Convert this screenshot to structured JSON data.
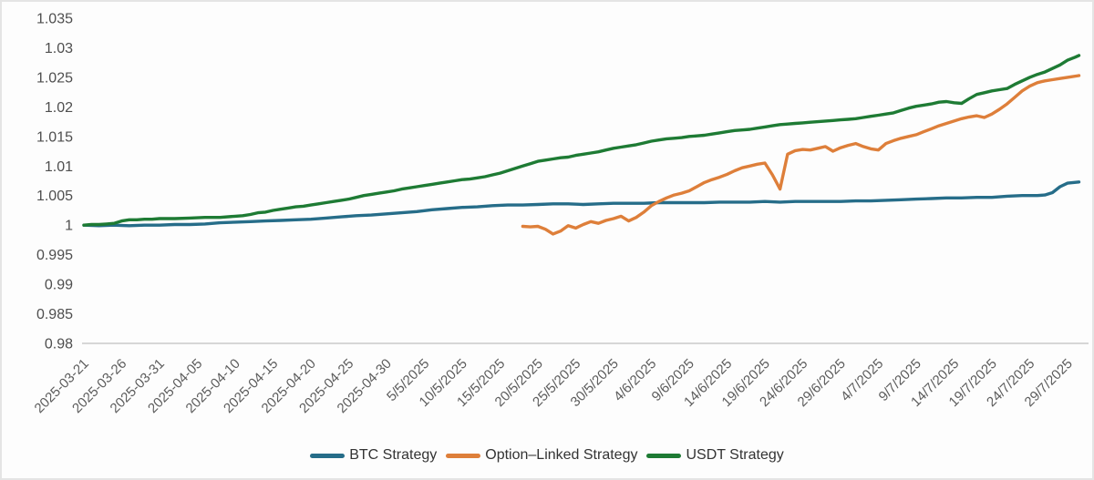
{
  "colors": {
    "background": "#fdfdfd",
    "frame_border": "#e4e4e4",
    "axis_line": "#d7d7d7",
    "y_tick_label": "#4e4e4e",
    "x_tick_label": "#5c5c5c",
    "legend_label": "#333333"
  },
  "chart_data": {
    "type": "line",
    "title": "",
    "xlabel": "",
    "ylabel": "",
    "grid": false,
    "legend_position": "bottom-center",
    "ylim": [
      0.98,
      1.035
    ],
    "y_tick_labels": [
      "1.035",
      "1.03",
      "1.025",
      "1.02",
      "1.015",
      "1.01",
      "1.005",
      "1",
      "0.995",
      "0.99",
      "0.985",
      "0.98"
    ],
    "y_tick_values": [
      1.035,
      1.03,
      1.025,
      1.02,
      1.015,
      1.01,
      1.005,
      1,
      0.995,
      0.99,
      0.985,
      0.98
    ],
    "x_tick_labels": [
      "2025-03-21",
      "2025-03-26",
      "2025-03-31",
      "2025-04-05",
      "2025-04-10",
      "2025-04-15",
      "2025-04-20",
      "2025-04-25",
      "2025-04-30",
      "5/5/2025",
      "10/5/2025",
      "15/5/2025",
      "20/5/2025",
      "25/5/2025",
      "30/5/2025",
      "4/6/2025",
      "9/6/2025",
      "14/6/2025",
      "19/6/2025",
      "24/6/2025",
      "29/6/2025",
      "4/7/2025",
      "9/7/2025",
      "14/7/2025",
      "19/7/2025",
      "24/7/2025",
      "29/7/2025"
    ],
    "x_tick_days": [
      0,
      5,
      10,
      15,
      20,
      25,
      30,
      35,
      40,
      45,
      50,
      55,
      60,
      65,
      70,
      75,
      80,
      85,
      90,
      95,
      100,
      105,
      110,
      115,
      120,
      125,
      130
    ],
    "x_day_range": [
      0,
      131.5
    ],
    "series": [
      {
        "name": "BTC Strategy",
        "color": "#266d89",
        "points": [
          [
            0,
            1.0
          ],
          [
            2,
            0.9999
          ],
          [
            4,
            1.0
          ],
          [
            6,
            0.9999
          ],
          [
            8,
            1.0
          ],
          [
            10,
            1.0
          ],
          [
            12,
            1.0001
          ],
          [
            14,
            1.0001
          ],
          [
            16,
            1.0002
          ],
          [
            18,
            1.0004
          ],
          [
            20,
            1.0005
          ],
          [
            22,
            1.0006
          ],
          [
            24,
            1.0007
          ],
          [
            26,
            1.0008
          ],
          [
            28,
            1.0009
          ],
          [
            30,
            1.001
          ],
          [
            32,
            1.0012
          ],
          [
            34,
            1.0014
          ],
          [
            36,
            1.0016
          ],
          [
            38,
            1.0017
          ],
          [
            40,
            1.0019
          ],
          [
            42,
            1.0021
          ],
          [
            44,
            1.0023
          ],
          [
            46,
            1.0026
          ],
          [
            48,
            1.0028
          ],
          [
            50,
            1.003
          ],
          [
            52,
            1.0031
          ],
          [
            54,
            1.0033
          ],
          [
            56,
            1.0034
          ],
          [
            58,
            1.0034
          ],
          [
            60,
            1.0035
          ],
          [
            62,
            1.0036
          ],
          [
            64,
            1.0036
          ],
          [
            66,
            1.0035
          ],
          [
            68,
            1.0036
          ],
          [
            70,
            1.0037
          ],
          [
            72,
            1.0037
          ],
          [
            74,
            1.0037
          ],
          [
            76,
            1.0038
          ],
          [
            78,
            1.0038
          ],
          [
            80,
            1.0038
          ],
          [
            82,
            1.0038
          ],
          [
            84,
            1.0039
          ],
          [
            86,
            1.0039
          ],
          [
            88,
            1.0039
          ],
          [
            90,
            1.004
          ],
          [
            92,
            1.0039
          ],
          [
            94,
            1.004
          ],
          [
            96,
            1.004
          ],
          [
            98,
            1.004
          ],
          [
            100,
            1.004
          ],
          [
            102,
            1.0041
          ],
          [
            104,
            1.0041
          ],
          [
            106,
            1.0042
          ],
          [
            108,
            1.0043
          ],
          [
            110,
            1.0044
          ],
          [
            112,
            1.0045
          ],
          [
            114,
            1.0046
          ],
          [
            116,
            1.0046
          ],
          [
            118,
            1.0047
          ],
          [
            120,
            1.0047
          ],
          [
            122,
            1.0049
          ],
          [
            124,
            1.005
          ],
          [
            126,
            1.005
          ],
          [
            127,
            1.0051
          ],
          [
            128,
            1.0055
          ],
          [
            129,
            1.0065
          ],
          [
            130,
            1.0071
          ],
          [
            131.5,
            1.0073
          ]
        ]
      },
      {
        "name": "Option–Linked Strategy",
        "color": "#de7f3a",
        "points": [
          [
            58,
            0.9998
          ],
          [
            59,
            0.9997
          ],
          [
            60,
            0.9998
          ],
          [
            61,
            0.9993
          ],
          [
            62,
            0.9985
          ],
          [
            63,
            0.999
          ],
          [
            64,
            0.9999
          ],
          [
            65,
            0.9995
          ],
          [
            66,
            1.0001
          ],
          [
            67,
            1.0006
          ],
          [
            68,
            1.0003
          ],
          [
            69,
            1.0008
          ],
          [
            70,
            1.0011
          ],
          [
            71,
            1.0015
          ],
          [
            72,
            1.0007
          ],
          [
            73,
            1.0013
          ],
          [
            74,
            1.0022
          ],
          [
            75,
            1.0033
          ],
          [
            76,
            1.004
          ],
          [
            77,
            1.0046
          ],
          [
            78,
            1.0051
          ],
          [
            79,
            1.0054
          ],
          [
            80,
            1.0058
          ],
          [
            81,
            1.0065
          ],
          [
            82,
            1.0072
          ],
          [
            83,
            1.0077
          ],
          [
            84,
            1.0081
          ],
          [
            85,
            1.0086
          ],
          [
            86,
            1.0092
          ],
          [
            87,
            1.0097
          ],
          [
            88,
            1.01
          ],
          [
            89,
            1.0103
          ],
          [
            90,
            1.0105
          ],
          [
            91,
            1.0085
          ],
          [
            92,
            1.0061
          ],
          [
            93,
            1.012
          ],
          [
            94,
            1.0126
          ],
          [
            95,
            1.0128
          ],
          [
            96,
            1.0127
          ],
          [
            97,
            1.013
          ],
          [
            98,
            1.0133
          ],
          [
            99,
            1.0125
          ],
          [
            100,
            1.0131
          ],
          [
            101,
            1.0135
          ],
          [
            102,
            1.0138
          ],
          [
            103,
            1.0133
          ],
          [
            104,
            1.0129
          ],
          [
            105,
            1.0127
          ],
          [
            106,
            1.0138
          ],
          [
            107,
            1.0143
          ],
          [
            108,
            1.0147
          ],
          [
            109,
            1.015
          ],
          [
            110,
            1.0153
          ],
          [
            111,
            1.0158
          ],
          [
            112,
            1.0163
          ],
          [
            113,
            1.0168
          ],
          [
            114,
            1.0172
          ],
          [
            115,
            1.0176
          ],
          [
            116,
            1.018
          ],
          [
            117,
            1.0183
          ],
          [
            118,
            1.0185
          ],
          [
            119,
            1.0182
          ],
          [
            120,
            1.0188
          ],
          [
            121,
            1.0196
          ],
          [
            122,
            1.0205
          ],
          [
            123,
            1.0216
          ],
          [
            124,
            1.0227
          ],
          [
            125,
            1.0235
          ],
          [
            126,
            1.0241
          ],
          [
            127,
            1.0244
          ],
          [
            128,
            1.0246
          ],
          [
            129,
            1.0248
          ],
          [
            130,
            1.025
          ],
          [
            131.5,
            1.0253
          ]
        ]
      },
      {
        "name": "USDT Strategy",
        "color": "#1e7b34",
        "points": [
          [
            0,
            1.0
          ],
          [
            1,
            1.0001
          ],
          [
            2,
            1.0001
          ],
          [
            3,
            1.0002
          ],
          [
            4,
            1.0003
          ],
          [
            5,
            1.0007
          ],
          [
            6,
            1.0009
          ],
          [
            7,
            1.0009
          ],
          [
            8,
            1.001
          ],
          [
            9,
            1.001
          ],
          [
            10,
            1.0011
          ],
          [
            12,
            1.0011
          ],
          [
            14,
            1.0012
          ],
          [
            16,
            1.0013
          ],
          [
            18,
            1.0013
          ],
          [
            20,
            1.0015
          ],
          [
            21,
            1.0016
          ],
          [
            22,
            1.0018
          ],
          [
            23,
            1.0021
          ],
          [
            24,
            1.0022
          ],
          [
            25,
            1.0025
          ],
          [
            26,
            1.0027
          ],
          [
            27,
            1.0029
          ],
          [
            28,
            1.0031
          ],
          [
            29,
            1.0032
          ],
          [
            30,
            1.0034
          ],
          [
            31,
            1.0036
          ],
          [
            32,
            1.0038
          ],
          [
            33,
            1.004
          ],
          [
            34,
            1.0042
          ],
          [
            35,
            1.0044
          ],
          [
            36,
            1.0047
          ],
          [
            37,
            1.005
          ],
          [
            38,
            1.0052
          ],
          [
            39,
            1.0054
          ],
          [
            40,
            1.0056
          ],
          [
            41,
            1.0058
          ],
          [
            42,
            1.0061
          ],
          [
            43,
            1.0063
          ],
          [
            44,
            1.0065
          ],
          [
            45,
            1.0067
          ],
          [
            46,
            1.0069
          ],
          [
            47,
            1.0071
          ],
          [
            48,
            1.0073
          ],
          [
            49,
            1.0075
          ],
          [
            50,
            1.0077
          ],
          [
            51,
            1.0078
          ],
          [
            52,
            1.008
          ],
          [
            53,
            1.0082
          ],
          [
            54,
            1.0085
          ],
          [
            55,
            1.0088
          ],
          [
            56,
            1.0092
          ],
          [
            57,
            1.0096
          ],
          [
            58,
            1.01
          ],
          [
            59,
            1.0104
          ],
          [
            60,
            1.0108
          ],
          [
            61,
            1.011
          ],
          [
            62,
            1.0112
          ],
          [
            63,
            1.0114
          ],
          [
            64,
            1.0115
          ],
          [
            65,
            1.0118
          ],
          [
            66,
            1.012
          ],
          [
            67,
            1.0122
          ],
          [
            68,
            1.0124
          ],
          [
            69,
            1.0127
          ],
          [
            70,
            1.013
          ],
          [
            71,
            1.0132
          ],
          [
            72,
            1.0134
          ],
          [
            73,
            1.0136
          ],
          [
            74,
            1.0139
          ],
          [
            75,
            1.0142
          ],
          [
            76,
            1.0144
          ],
          [
            77,
            1.0146
          ],
          [
            78,
            1.0147
          ],
          [
            79,
            1.0148
          ],
          [
            80,
            1.015
          ],
          [
            81,
            1.0151
          ],
          [
            82,
            1.0152
          ],
          [
            83,
            1.0154
          ],
          [
            84,
            1.0156
          ],
          [
            85,
            1.0158
          ],
          [
            86,
            1.016
          ],
          [
            87,
            1.0161
          ],
          [
            88,
            1.0162
          ],
          [
            89,
            1.0164
          ],
          [
            90,
            1.0166
          ],
          [
            91,
            1.0168
          ],
          [
            92,
            1.017
          ],
          [
            93,
            1.0171
          ],
          [
            94,
            1.0172
          ],
          [
            95,
            1.0173
          ],
          [
            96,
            1.0174
          ],
          [
            97,
            1.0175
          ],
          [
            98,
            1.0176
          ],
          [
            99,
            1.0177
          ],
          [
            100,
            1.0178
          ],
          [
            101,
            1.0179
          ],
          [
            102,
            1.018
          ],
          [
            103,
            1.0182
          ],
          [
            104,
            1.0184
          ],
          [
            105,
            1.0186
          ],
          [
            106,
            1.0188
          ],
          [
            107,
            1.019
          ],
          [
            108,
            1.0194
          ],
          [
            109,
            1.0198
          ],
          [
            110,
            1.0201
          ],
          [
            111,
            1.0203
          ],
          [
            112,
            1.0205
          ],
          [
            113,
            1.0208
          ],
          [
            114,
            1.0209
          ],
          [
            115,
            1.0207
          ],
          [
            116,
            1.0206
          ],
          [
            117,
            1.0214
          ],
          [
            118,
            1.0221
          ],
          [
            119,
            1.0224
          ],
          [
            120,
            1.0227
          ],
          [
            121,
            1.0229
          ],
          [
            122,
            1.0231
          ],
          [
            123,
            1.0238
          ],
          [
            124,
            1.0244
          ],
          [
            125,
            1.025
          ],
          [
            126,
            1.0255
          ],
          [
            127,
            1.0259
          ],
          [
            128,
            1.0265
          ],
          [
            129,
            1.0271
          ],
          [
            130,
            1.0279
          ],
          [
            131,
            1.0284
          ],
          [
            131.5,
            1.0287
          ]
        ]
      }
    ]
  },
  "legend": {
    "items": [
      {
        "label": "BTC Strategy"
      },
      {
        "label": "Option–Linked Strategy"
      },
      {
        "label": "USDT Strategy"
      }
    ]
  }
}
